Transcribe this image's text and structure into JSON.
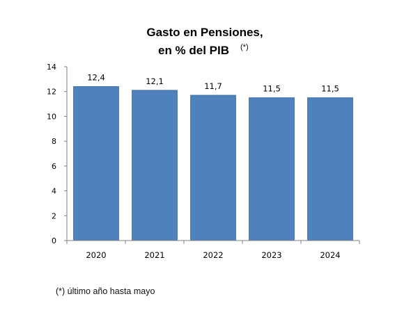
{
  "chart_data": {
    "type": "bar",
    "title_line1": "Gasto en Pensiones,",
    "title_line2": "en % del PIB",
    "title_note": "(*)",
    "categories": [
      "2020",
      "2021",
      "2022",
      "2023",
      "2024"
    ],
    "values": [
      12.4,
      12.1,
      11.7,
      11.5,
      11.5
    ],
    "value_labels": [
      "12,4",
      "12,1",
      "11,7",
      "11,5",
      "11,5"
    ],
    "ylim": [
      0,
      14
    ],
    "yticks": [
      0,
      2,
      4,
      6,
      8,
      10,
      12,
      14
    ],
    "xlabel": "",
    "ylabel": "",
    "grid": false,
    "bar_color": "#4f81bd",
    "bar_edge_color": "#3a6aa3"
  },
  "footnote": "(*) último año hasta mayo"
}
